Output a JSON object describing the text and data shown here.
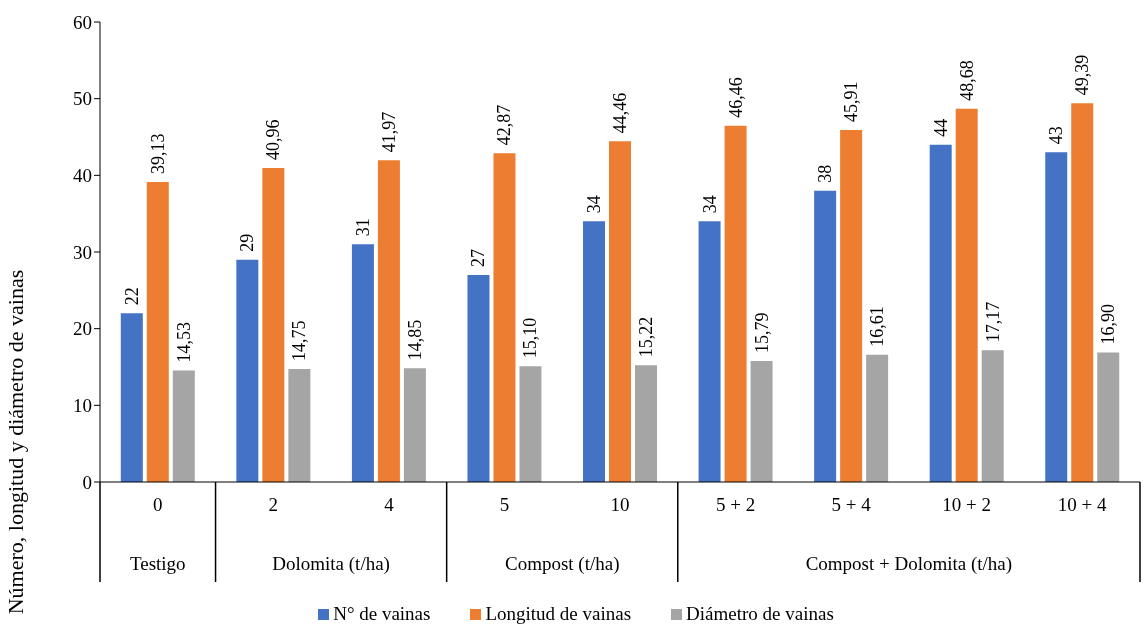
{
  "chart_data": {
    "type": "bar",
    "ylabel": "Número, longitud y diámetro de vainas",
    "categories": [
      "0",
      "2",
      "4",
      "5",
      "10",
      "5 + 2",
      "5 + 4",
      "10 + 2",
      "10 + 4"
    ],
    "annotations": [
      "Testigo",
      "Dolomita (t/ha)",
      "Compost (t/ha)",
      "Compost + Dolomita (t/ha)"
    ],
    "series": [
      {
        "name": "N° de vainas",
        "color": "#4472c4",
        "values": [
          22,
          29,
          31,
          27,
          34,
          34,
          38,
          44,
          43
        ],
        "value_labels": [
          "22",
          "29",
          "31",
          "27",
          "34",
          "34",
          "38",
          "44",
          "43"
        ]
      },
      {
        "name": "Longitud de vainas",
        "color": "#ed7d31",
        "values": [
          39.13,
          40.96,
          41.97,
          42.87,
          44.46,
          46.46,
          45.91,
          48.68,
          49.39
        ],
        "value_labels": [
          "39,13",
          "40,96",
          "41,97",
          "42,87",
          "44,46",
          "46,46",
          "45,91",
          "48,68",
          "49,39"
        ]
      },
      {
        "name": "Diámetro de vainas",
        "color": "#a5a5a5",
        "values": [
          14.53,
          14.75,
          14.85,
          15.1,
          15.22,
          15.79,
          16.61,
          17.17,
          16.9
        ],
        "value_labels": [
          "14,53",
          "14,75",
          "14,85",
          "15,10",
          "15,22",
          "15,79",
          "16,61",
          "17,17",
          "16,90"
        ]
      }
    ],
    "ylim": [
      0,
      60
    ],
    "yticks": [
      0,
      10,
      20,
      30,
      40,
      50,
      60
    ],
    "grid": false,
    "legend": "bottom"
  }
}
